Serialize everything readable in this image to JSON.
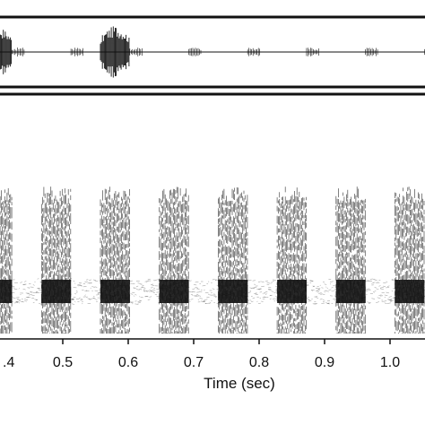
{
  "chart_data": [
    {
      "type": "waveform",
      "panel": "oscillogram",
      "bursts_at_sec": [
        0.4,
        0.49,
        0.58,
        0.67,
        0.76,
        0.85,
        0.94,
        1.03
      ],
      "burst_duration_sec": 0.045,
      "grid": false
    },
    {
      "type": "spectrogram",
      "panel": "spectrogram",
      "bursts_at_sec": [
        0.4,
        0.49,
        0.58,
        0.67,
        0.76,
        0.85,
        0.94,
        1.03
      ],
      "burst_duration_sec": 0.045,
      "xlabel": "Time (sec)",
      "xlim": [
        0.4,
        1.05
      ],
      "xticks": [
        0.4,
        0.5,
        0.6,
        0.7,
        0.8,
        0.9,
        1.0
      ],
      "xtick_labels": [
        ".4",
        "0.5",
        "0.6",
        "0.7",
        "0.8",
        "0.9",
        "1.0"
      ],
      "grid": false
    }
  ],
  "colors": {
    "ink": "#111111",
    "background": "#ffffff"
  }
}
